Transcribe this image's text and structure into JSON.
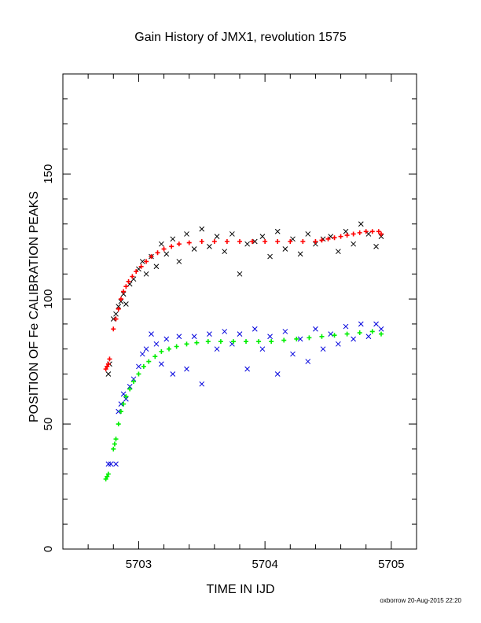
{
  "chart_data": {
    "type": "scatter",
    "title": "Gain History of JMX1, revolution 1575",
    "xlabel": "TIME IN IJD",
    "ylabel": "POSITION OF Fe CALIBRATION PEAKS",
    "xlim": [
      5702.4,
      5705.2
    ],
    "ylim": [
      0,
      190
    ],
    "x_ticks": [
      5703,
      5704,
      5705
    ],
    "y_ticks": [
      0,
      50,
      100,
      150
    ],
    "grid": false,
    "series": [
      {
        "marker": "x",
        "color": "#000000",
        "x": [
          5702.76,
          5702.77,
          5702.8,
          5702.82,
          5702.84,
          5702.86,
          5702.88,
          5702.9,
          5702.93,
          5702.96,
          5703.0,
          5703.03,
          5703.06,
          5703.1,
          5703.14,
          5703.18,
          5703.22,
          5703.27,
          5703.32,
          5703.38,
          5703.44,
          5703.5,
          5703.56,
          5703.62,
          5703.68,
          5703.74,
          5703.8,
          5703.86,
          5703.92,
          5703.98,
          5704.04,
          5704.1,
          5704.16,
          5704.22,
          5704.28,
          5704.34,
          5704.4,
          5704.46,
          5704.52,
          5704.58,
          5704.64,
          5704.7,
          5704.76,
          5704.82,
          5704.88,
          5704.92
        ],
        "y": [
          70,
          74,
          92,
          94,
          97,
          99,
          102,
          98,
          106,
          108,
          112,
          115,
          110,
          117,
          113,
          122,
          118,
          124,
          115,
          126,
          120,
          128,
          121,
          125,
          119,
          126,
          110,
          122,
          123,
          125,
          117,
          127,
          120,
          124,
          118,
          126,
          122,
          124,
          125,
          119,
          127,
          122,
          130,
          126,
          121,
          125
        ]
      },
      {
        "marker": "+",
        "color": "#ff0000",
        "x": [
          5702.74,
          5702.75,
          5702.76,
          5702.77,
          5702.8,
          5702.82,
          5702.84,
          5702.86,
          5702.88,
          5702.9,
          5702.92,
          5702.95,
          5702.98,
          5703.02,
          5703.06,
          5703.1,
          5703.15,
          5703.2,
          5703.26,
          5703.32,
          5703.4,
          5703.5,
          5703.6,
          5703.7,
          5703.8,
          5703.9,
          5704.0,
          5704.1,
          5704.2,
          5704.3,
          5704.4,
          5704.45,
          5704.5,
          5704.55,
          5704.6,
          5704.65,
          5704.7,
          5704.75,
          5704.8,
          5704.85,
          5704.9,
          5704.92
        ],
        "y": [
          72,
          73,
          74,
          76,
          88,
          92,
          96,
          100,
          103,
          105,
          107,
          109,
          111,
          113,
          115,
          117,
          118.5,
          120,
          121,
          122,
          122.5,
          123,
          123,
          123,
          123,
          123,
          123,
          123,
          123,
          123,
          123,
          123.5,
          124,
          124.5,
          125,
          125.5,
          126,
          126.5,
          127,
          127,
          127,
          126
        ]
      },
      {
        "marker": "x",
        "color": "#0000dd",
        "x": [
          5702.76,
          5702.78,
          5702.82,
          5702.84,
          5702.86,
          5702.88,
          5702.9,
          5702.93,
          5702.96,
          5703.0,
          5703.03,
          5703.06,
          5703.1,
          5703.14,
          5703.18,
          5703.22,
          5703.27,
          5703.32,
          5703.38,
          5703.44,
          5703.5,
          5703.56,
          5703.62,
          5703.68,
          5703.74,
          5703.8,
          5703.86,
          5703.92,
          5703.98,
          5704.04,
          5704.1,
          5704.16,
          5704.22,
          5704.28,
          5704.34,
          5704.4,
          5704.46,
          5704.52,
          5704.58,
          5704.64,
          5704.7,
          5704.76,
          5704.82,
          5704.88,
          5704.92
        ],
        "y": [
          34,
          34,
          34,
          55,
          58,
          62,
          60,
          65,
          68,
          73,
          78,
          80,
          86,
          82,
          74,
          84,
          70,
          85,
          72,
          85,
          66,
          86,
          80,
          87,
          82,
          86,
          72,
          88,
          80,
          85,
          70,
          87,
          78,
          84,
          75,
          88,
          80,
          86,
          82,
          89,
          84,
          90,
          85,
          90,
          88
        ]
      },
      {
        "marker": "+",
        "color": "#00ee00",
        "x": [
          5702.74,
          5702.75,
          5702.76,
          5702.8,
          5702.81,
          5702.82,
          5702.84,
          5702.86,
          5702.88,
          5702.9,
          5702.93,
          5702.96,
          5703.0,
          5703.04,
          5703.08,
          5703.13,
          5703.18,
          5703.24,
          5703.3,
          5703.38,
          5703.46,
          5703.55,
          5703.65,
          5703.75,
          5703.85,
          5703.95,
          5704.05,
          5704.15,
          5704.25,
          5704.35,
          5704.45,
          5704.55,
          5704.65,
          5704.75,
          5704.85,
          5704.92
        ],
        "y": [
          28,
          29,
          30,
          40,
          42,
          44,
          50,
          55,
          58,
          61,
          64,
          67,
          70,
          73,
          75,
          77,
          79,
          80,
          81,
          82,
          82.5,
          83,
          83,
          83,
          83,
          83,
          83,
          83.5,
          84,
          84.5,
          85,
          85.5,
          86,
          86.5,
          87,
          86
        ]
      }
    ]
  },
  "footer": {
    "text": "oxborrow 20-Aug-2015 22:20"
  }
}
